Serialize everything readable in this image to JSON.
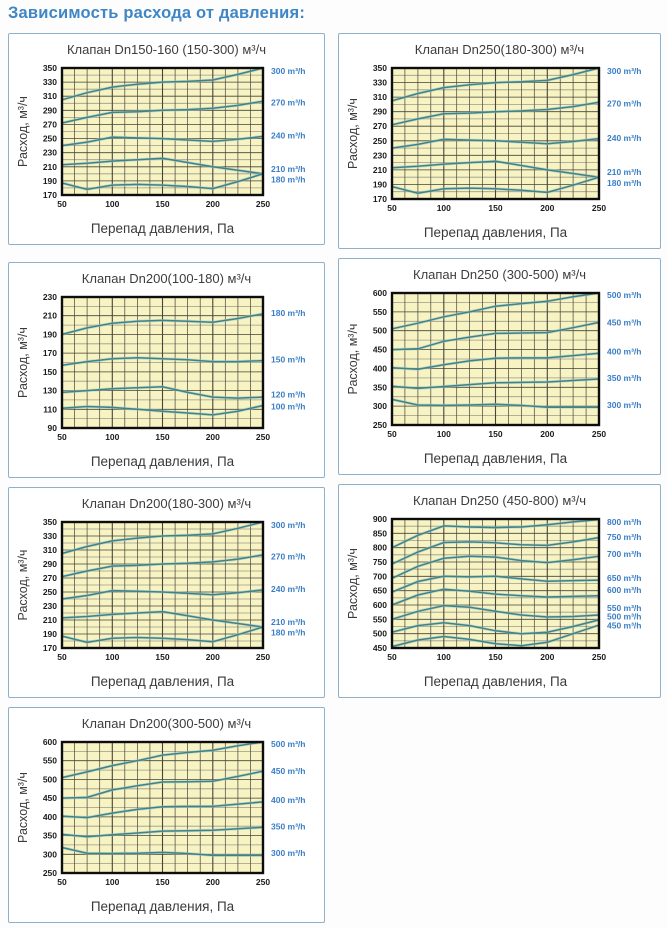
{
  "page": {
    "heading": "Зависимость расхода от давления:"
  },
  "colors": {
    "heading_blue": "#3e86c6",
    "panel_border": "#8fb0cb",
    "plot_bg": "#f7f3c3",
    "grid_major": "#45453a",
    "grid_minor": "#9c9a88",
    "line": "#3f8387",
    "line_halo": "#9fc6c9",
    "series_label_blue": "#3b7ec4",
    "tick_text": "#1b1b1b",
    "title_text": "#3d3d3d",
    "plot_border": "#0d0d0d"
  },
  "chart_data": [
    {
      "type": "line",
      "title": "Клапан Dn150-160 (150-300) м³/ч",
      "xlabel": "Перепад давления, Па",
      "ylabel": "Расход, м³/ч",
      "x": [
        50,
        75,
        100,
        125,
        150,
        175,
        200,
        225,
        250
      ],
      "x_ticks": [
        50,
        100,
        150,
        200,
        250
      ],
      "xlim": [
        50,
        250
      ],
      "x_minor": 12.5,
      "x_major": 50,
      "ylim": [
        170,
        350
      ],
      "y_major": 20,
      "y_minor": 10,
      "legend_position": "right",
      "grid": true,
      "series": [
        {
          "name": "300 m³/h",
          "label_at": 346,
          "values": [
            305,
            315,
            323,
            327,
            330,
            331,
            333,
            341,
            350
          ]
        },
        {
          "name": "270 m³/h",
          "label_at": 301,
          "values": [
            272,
            280,
            287,
            288,
            290,
            291,
            293,
            297,
            303
          ]
        },
        {
          "name": "240 m³/h",
          "label_at": 254,
          "values": [
            240,
            245,
            252,
            251,
            250,
            248,
            246,
            249,
            253
          ]
        },
        {
          "name": "210 m³/h",
          "label_at": 207,
          "values": [
            213,
            215,
            218,
            220,
            222,
            216,
            210,
            205,
            200
          ]
        },
        {
          "name": "180 m³/h",
          "label_at": 192,
          "values": [
            187,
            178,
            184,
            185,
            184,
            182,
            179,
            189,
            200
          ]
        }
      ]
    },
    {
      "type": "line",
      "title": "Клапан Dn250(180-300) м³/ч",
      "xlabel": "Перепад давления, Па",
      "ylabel": "Расход, м³/ч",
      "x": [
        50,
        75,
        100,
        125,
        150,
        175,
        200,
        225,
        250
      ],
      "x_ticks": [
        50,
        100,
        150,
        200,
        250
      ],
      "xlim": [
        50,
        250
      ],
      "x_minor": 12.5,
      "x_major": 50,
      "ylim": [
        170,
        350
      ],
      "y_major": 20,
      "y_minor": 10,
      "legend_position": "right",
      "grid": true,
      "series": [
        {
          "name": "300 m³/h",
          "label_at": 346,
          "values": [
            305,
            315,
            323,
            327,
            330,
            331,
            333,
            341,
            350
          ]
        },
        {
          "name": "270 m³/h",
          "label_at": 301,
          "values": [
            272,
            280,
            287,
            288,
            290,
            291,
            293,
            297,
            303
          ]
        },
        {
          "name": "240 m³/h",
          "label_at": 254,
          "values": [
            240,
            245,
            252,
            251,
            250,
            248,
            246,
            249,
            253
          ]
        },
        {
          "name": "210 m³/h",
          "label_at": 207,
          "values": [
            213,
            215,
            218,
            220,
            222,
            216,
            210,
            205,
            200
          ]
        },
        {
          "name": "180 m³/h",
          "label_at": 192,
          "values": [
            187,
            178,
            184,
            185,
            184,
            182,
            179,
            189,
            200
          ]
        }
      ]
    },
    {
      "type": "line",
      "title": "Клапан Dn200(100-180) м³/ч",
      "xlabel": "Перепад давления, Па",
      "ylabel": "Расход, м³/ч",
      "x": [
        50,
        75,
        100,
        125,
        150,
        175,
        200,
        225,
        250
      ],
      "x_ticks": [
        50,
        100,
        150,
        200,
        250
      ],
      "xlim": [
        50,
        250
      ],
      "x_minor": 12.5,
      "x_major": 50,
      "ylim": [
        90,
        230
      ],
      "y_major": 20,
      "y_minor": 10,
      "legend_position": "right",
      "grid": true,
      "series": [
        {
          "name": "180 m³/h",
          "label_at": 213,
          "values": [
            190,
            197,
            202,
            204,
            205,
            204,
            203,
            207,
            212
          ]
        },
        {
          "name": "150 m³/h",
          "label_at": 163,
          "values": [
            157,
            161,
            164,
            165,
            164,
            163,
            161,
            161,
            162
          ]
        },
        {
          "name": "120 m³/h",
          "label_at": 126,
          "values": [
            128,
            130,
            132,
            133,
            134,
            128,
            123,
            122,
            123
          ]
        },
        {
          "name": "100 m³/h",
          "label_at": 113,
          "values": [
            111,
            113,
            112,
            110,
            108,
            106,
            104,
            108,
            114
          ]
        }
      ]
    },
    {
      "type": "line",
      "title": "Клапан Dn250 (300-500) м³/ч",
      "xlabel": "Перепад давления, Па",
      "ylabel": "Расход, м³/ч",
      "x": [
        50,
        75,
        100,
        125,
        150,
        175,
        200,
        225,
        250
      ],
      "x_ticks": [
        50,
        100,
        150,
        200,
        250
      ],
      "xlim": [
        50,
        250
      ],
      "x_minor": 12.5,
      "x_major": 50,
      "ylim": [
        250,
        600
      ],
      "y_major": 50,
      "y_minor": 25,
      "legend_position": "right",
      "grid": true,
      "series": [
        {
          "name": "500 m³/h",
          "label_at": 595,
          "values": [
            505,
            520,
            537,
            550,
            565,
            572,
            578,
            590,
            600
          ]
        },
        {
          "name": "450 m³/h",
          "label_at": 522,
          "values": [
            450,
            452,
            472,
            483,
            493,
            494,
            495,
            508,
            522
          ]
        },
        {
          "name": "400 m³/h",
          "label_at": 445,
          "values": [
            402,
            398,
            410,
            420,
            427,
            428,
            428,
            434,
            440
          ]
        },
        {
          "name": "350 m³/h",
          "label_at": 374,
          "values": [
            353,
            347,
            352,
            357,
            362,
            363,
            364,
            368,
            372
          ]
        },
        {
          "name": "300 m³/h",
          "label_at": 303,
          "values": [
            318,
            303,
            302,
            303,
            305,
            302,
            297,
            297,
            297
          ]
        }
      ]
    },
    {
      "type": "line",
      "title": "Клапан Dn200(180-300) м³/ч",
      "xlabel": "Перепад давления, Па",
      "ylabel": "Расход, м³/ч",
      "x": [
        50,
        75,
        100,
        125,
        150,
        175,
        200,
        225,
        250
      ],
      "x_ticks": [
        50,
        100,
        150,
        200,
        250
      ],
      "xlim": [
        50,
        250
      ],
      "x_minor": 12.5,
      "x_major": 50,
      "ylim": [
        170,
        350
      ],
      "y_major": 20,
      "y_minor": 10,
      "legend_position": "right",
      "grid": true,
      "series": [
        {
          "name": "300 m³/h",
          "label_at": 346,
          "values": [
            305,
            315,
            323,
            327,
            330,
            331,
            333,
            341,
            350
          ]
        },
        {
          "name": "270 m³/h",
          "label_at": 301,
          "values": [
            272,
            280,
            287,
            288,
            290,
            291,
            293,
            297,
            303
          ]
        },
        {
          "name": "240 m³/h",
          "label_at": 254,
          "values": [
            240,
            245,
            252,
            251,
            250,
            248,
            246,
            249,
            253
          ]
        },
        {
          "name": "210 m³/h",
          "label_at": 207,
          "values": [
            213,
            215,
            218,
            220,
            222,
            216,
            210,
            205,
            200
          ]
        },
        {
          "name": "180 m³/h",
          "label_at": 192,
          "values": [
            187,
            178,
            184,
            185,
            184,
            182,
            179,
            189,
            200
          ]
        }
      ]
    },
    {
      "type": "line",
      "title": "Клапан Dn250 (450-800) м³/ч",
      "xlabel": "Перепад давления, Па",
      "ylabel": "Расход, м³/ч",
      "x": [
        50,
        75,
        100,
        125,
        150,
        175,
        200,
        225,
        250
      ],
      "x_ticks": [
        50,
        100,
        150,
        200,
        250
      ],
      "xlim": [
        50,
        250
      ],
      "x_minor": 12.5,
      "x_major": 50,
      "ylim": [
        450,
        900
      ],
      "y_major": 50,
      "y_minor": 25,
      "legend_position": "right",
      "grid": true,
      "series": [
        {
          "name": "800 m³/h",
          "label_at": 890,
          "values": [
            800,
            843,
            876,
            872,
            870,
            872,
            880,
            890,
            898
          ]
        },
        {
          "name": "750 m³/h",
          "label_at": 838,
          "values": [
            743,
            785,
            818,
            820,
            817,
            810,
            808,
            820,
            835
          ]
        },
        {
          "name": "700 m³/h",
          "label_at": 778,
          "values": [
            693,
            735,
            763,
            770,
            767,
            755,
            748,
            758,
            770
          ]
        },
        {
          "name": "650 m³/h",
          "label_at": 695,
          "values": [
            645,
            682,
            700,
            698,
            700,
            691,
            683,
            685,
            687
          ]
        },
        {
          "name": "600 m³/h",
          "label_at": 652,
          "values": [
            600,
            635,
            655,
            648,
            638,
            632,
            628,
            630,
            632
          ]
        },
        {
          "name": "550 m³/h",
          "label_at": 590,
          "values": [
            550,
            578,
            598,
            592,
            578,
            565,
            558,
            560,
            565
          ]
        },
        {
          "name": "500 m³/h",
          "label_at": 560,
          "values": [
            505,
            528,
            538,
            528,
            510,
            500,
            505,
            525,
            548
          ]
        },
        {
          "name": "450 m³/h",
          "label_at": 528,
          "values": [
            455,
            478,
            490,
            480,
            465,
            458,
            470,
            500,
            530
          ]
        }
      ]
    },
    {
      "type": "line",
      "title": "Клапан Dn200(300-500) м³/ч",
      "xlabel": "Перепад давления, Па",
      "ylabel": "Расход, м³/ч",
      "x": [
        50,
        75,
        100,
        125,
        150,
        175,
        200,
        225,
        250
      ],
      "x_ticks": [
        50,
        100,
        150,
        200,
        250
      ],
      "xlim": [
        50,
        250
      ],
      "x_minor": 12.5,
      "x_major": 50,
      "ylim": [
        250,
        600
      ],
      "y_major": 50,
      "y_minor": 25,
      "legend_position": "right",
      "grid": true,
      "series": [
        {
          "name": "500 m³/h",
          "label_at": 595,
          "values": [
            505,
            520,
            537,
            550,
            565,
            572,
            578,
            590,
            600
          ]
        },
        {
          "name": "450 m³/h",
          "label_at": 522,
          "values": [
            450,
            452,
            472,
            483,
            493,
            494,
            495,
            508,
            522
          ]
        },
        {
          "name": "400 m³/h",
          "label_at": 445,
          "values": [
            402,
            398,
            410,
            420,
            427,
            428,
            428,
            434,
            440
          ]
        },
        {
          "name": "350 m³/h",
          "label_at": 374,
          "values": [
            353,
            347,
            352,
            357,
            362,
            363,
            364,
            368,
            372
          ]
        },
        {
          "name": "300 m³/h",
          "label_at": 303,
          "values": [
            318,
            303,
            302,
            303,
            305,
            302,
            297,
            297,
            297
          ]
        }
      ]
    }
  ]
}
